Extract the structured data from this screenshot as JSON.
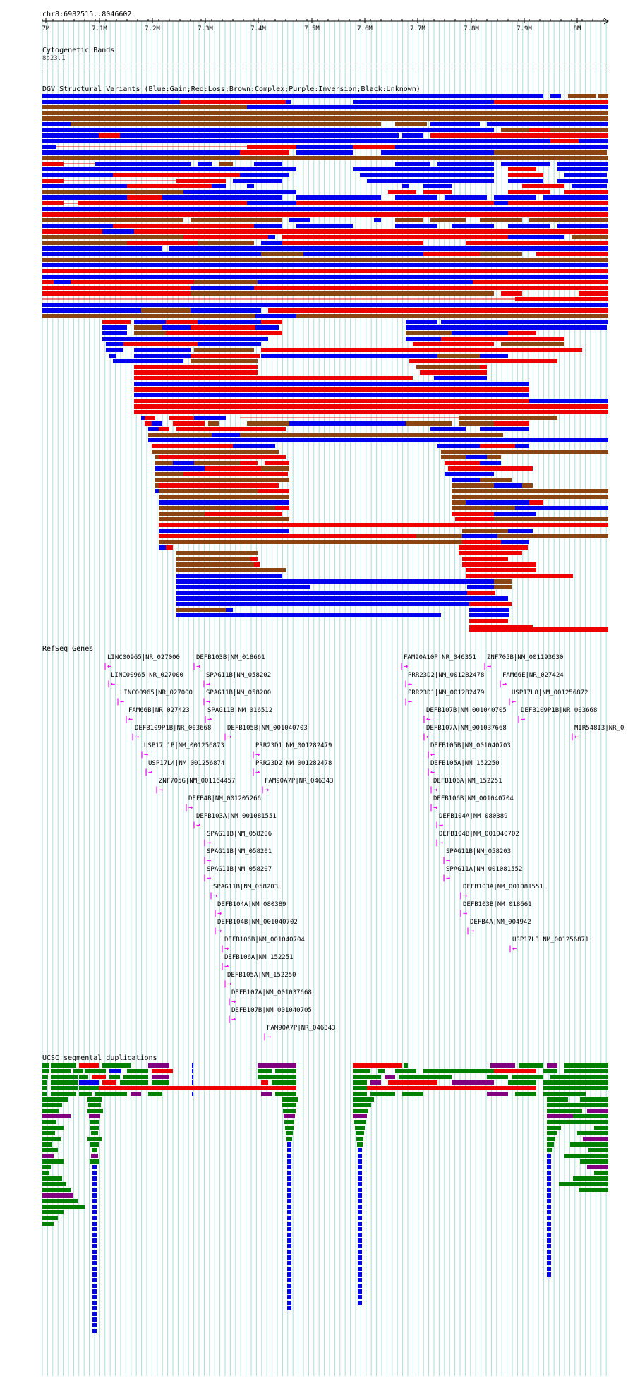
{
  "header": {
    "region": "chr8:6982515..8046602",
    "ticks": [
      "7M",
      "7.1M",
      "7.2M",
      "7.3M",
      "7.4M",
      "7.5M",
      "7.6M",
      "7.7M",
      "7.8M",
      "7.9M",
      "8M"
    ]
  },
  "tracks": {
    "cytobands": {
      "title": "Cytogenetic Bands",
      "band": "8p23.1"
    },
    "dgv": {
      "title": "DGV Structural Variants (Blue:Gain;Red:Loss;Brown:Complex;Purple:Inversion;Black:Unknown)"
    },
    "refseq": {
      "title": "RefSeq Genes"
    },
    "segdup": {
      "title": "UCSC segmental duplications"
    }
  },
  "colors": {
    "gain": "#0000ee",
    "loss": "#ee0000",
    "complex": "#8b4513",
    "inversion": "#800080",
    "gene": "#ee00ee",
    "segdup_green": "#008000",
    "segdup_blue": "#0000ee",
    "grid": "#aadddd"
  },
  "genes": [
    {
      "label": "LINC00965|NR_027000"
    },
    {
      "label": "DEFB103B|NM_018661"
    },
    {
      "label": "LINC00965|NR_027000"
    },
    {
      "label": "SPAG11B|NM_058202"
    },
    {
      "label": "LINC00965|NR_027000"
    },
    {
      "label": "SPAG11B|NM_058200"
    },
    {
      "label": "FAM66B|NR_027423"
    },
    {
      "label": "SPAG11B|NM_016512"
    },
    {
      "label": "DEFB109P1B|NR_003668"
    },
    {
      "label": "DEFB105B|NM_001040703"
    },
    {
      "label": "USP17L1P|NM_001256873"
    },
    {
      "label": "PRR23D1|NM_001282479"
    },
    {
      "label": "USP17L4|NM_001256874"
    },
    {
      "label": "PRR23D2|NM_001282478"
    },
    {
      "label": "ZNF705G|NM_001164457"
    },
    {
      "label": "FAM90A7P|NR_046343"
    },
    {
      "label": "DEFB4B|NM_001205266"
    },
    {
      "label": "DEFB103A|NM_001081551"
    },
    {
      "label": "SPAG11B|NM_058206"
    },
    {
      "label": "SPAG11B|NM_058201"
    },
    {
      "label": "SPAG11B|NM_058207"
    },
    {
      "label": "SPAG11B|NM_058203"
    },
    {
      "label": "DEFB104A|NM_080389"
    },
    {
      "label": "DEFB104B|NM_001040702"
    },
    {
      "label": "DEFB106B|NM_001040704"
    },
    {
      "label": "DEFB106A|NM_152251"
    },
    {
      "label": "DEFB105A|NM_152250"
    },
    {
      "label": "DEFB107A|NM_001037668"
    },
    {
      "label": "DEFB107B|NM_001040705"
    },
    {
      "label": "FAM90A7P|NR_046343"
    },
    {
      "label": "FAM90A10P|NR_046351"
    },
    {
      "label": "ZNF705B|NM_001193630"
    },
    {
      "label": "PRR23D2|NM_001282478"
    },
    {
      "label": "FAM66E|NR_027424"
    },
    {
      "label": "PRR23D1|NM_001282479"
    },
    {
      "label": "USP17L8|NM_001256872"
    },
    {
      "label": "DEFB107B|NM_001040705"
    },
    {
      "label": "DEFB109P1B|NR_003668"
    },
    {
      "label": "DEFB107A|NM_001037668"
    },
    {
      "label": "MIR548I3|NR_0"
    },
    {
      "label": "DEFB105B|NM_001040703"
    },
    {
      "label": "DEFB105A|NM_152250"
    },
    {
      "label": "DEFB106A|NM_152251"
    },
    {
      "label": "DEFB106B|NM_001040704"
    },
    {
      "label": "DEFB104A|NM_080389"
    },
    {
      "label": "DEFB104B|NM_001040702"
    },
    {
      "label": "SPAG11B|NM_058203"
    },
    {
      "label": "SPAG11A|NM_001081552"
    },
    {
      "label": "DEFB103A|NM_001081551"
    },
    {
      "label": "DEFB103B|NM_018661"
    },
    {
      "label": "DEFB4A|NM_004942"
    },
    {
      "label": "USP17L3|NM_001256871"
    }
  ]
}
